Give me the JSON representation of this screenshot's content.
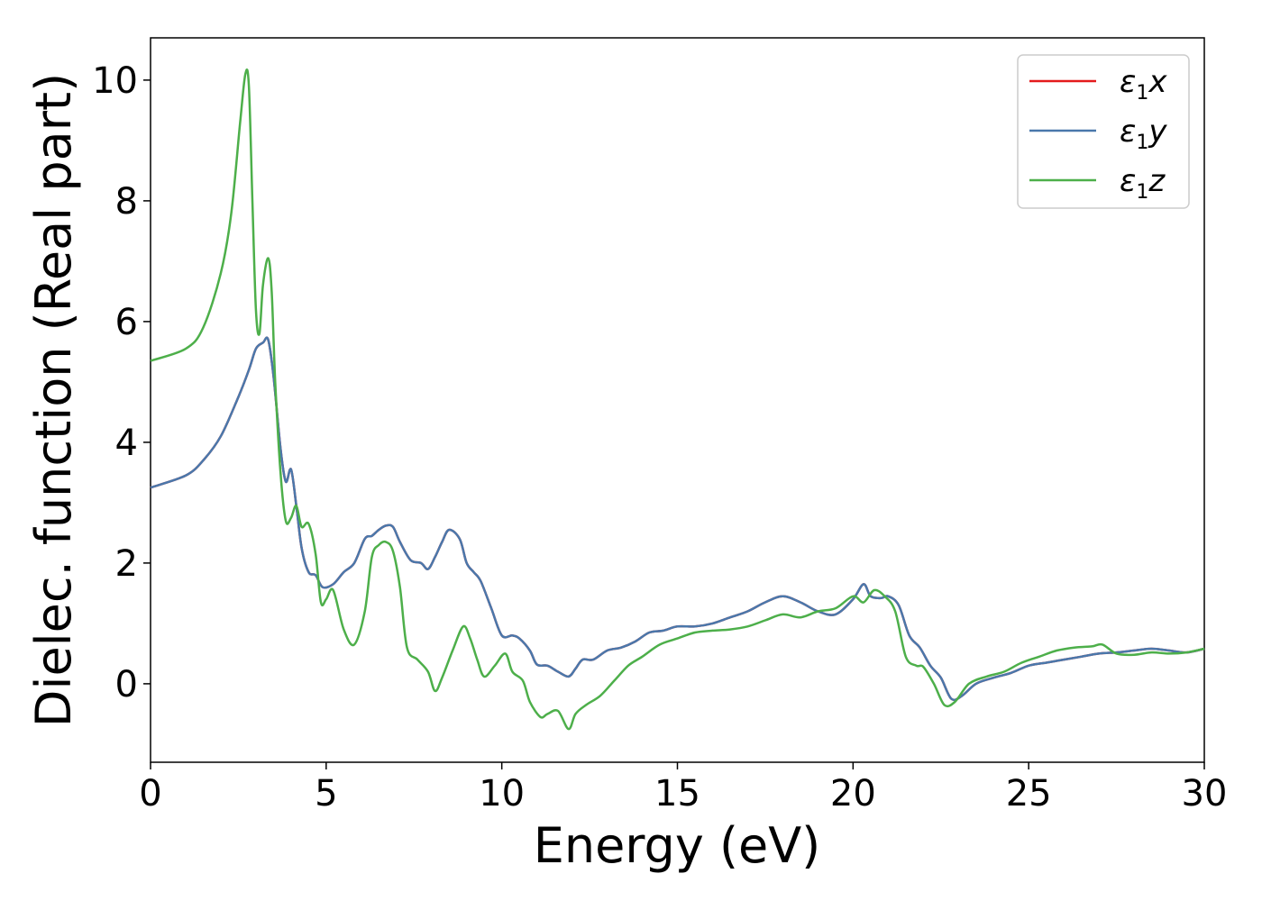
{
  "chart_data": {
    "type": "line",
    "xlabel": "Energy (eV)",
    "ylabel": "Dielec. function (Real part)",
    "xlim": [
      0,
      30
    ],
    "ylim": [
      -1.3,
      10.7
    ],
    "xticks": [
      0,
      5,
      10,
      15,
      20,
      25,
      30
    ],
    "yticks": [
      0,
      2,
      4,
      6,
      8,
      10
    ],
    "grid": false,
    "legend_position": "top-right",
    "series": [
      {
        "name": "ε1x",
        "legend": {
          "base": "ε",
          "sub": "1",
          "var": "x"
        },
        "color": "#e41a1c",
        "x": [
          0,
          1,
          1.5,
          2,
          2.5,
          2.8,
          3.0,
          3.2,
          3.35,
          3.5,
          3.7,
          3.85,
          4.0,
          4.15,
          4.3,
          4.5,
          4.7,
          4.9,
          5.2,
          5.5,
          5.8,
          6.1,
          6.3,
          6.5,
          6.7,
          6.9,
          7.1,
          7.4,
          7.7,
          7.9,
          8.1,
          8.3,
          8.5,
          8.8,
          9.0,
          9.2,
          9.4,
          9.7,
          10.0,
          10.3,
          10.5,
          10.8,
          11.0,
          11.3,
          11.6,
          11.9,
          12.1,
          12.3,
          12.6,
          13.0,
          13.4,
          13.8,
          14.2,
          14.6,
          15.0,
          15.5,
          16.0,
          16.5,
          17.0,
          17.5,
          18.0,
          18.5,
          19.0,
          19.5,
          20.0,
          20.3,
          20.5,
          20.8,
          21.0,
          21.3,
          21.6,
          21.9,
          22.2,
          22.5,
          22.8,
          23.1,
          23.5,
          24.0,
          24.5,
          25.0,
          25.5,
          26.0,
          26.5,
          27.0,
          27.5,
          28.0,
          28.5,
          29.0,
          29.5,
          30.0
        ],
        "values": [
          3.25,
          3.45,
          3.7,
          4.1,
          4.75,
          5.2,
          5.55,
          5.65,
          5.7,
          5.1,
          3.9,
          3.35,
          3.55,
          2.95,
          2.25,
          1.85,
          1.8,
          1.6,
          1.65,
          1.85,
          2.0,
          2.4,
          2.45,
          2.55,
          2.62,
          2.6,
          2.35,
          2.05,
          2.0,
          1.9,
          2.1,
          2.35,
          2.55,
          2.4,
          2.0,
          1.85,
          1.7,
          1.25,
          0.8,
          0.8,
          0.75,
          0.55,
          0.32,
          0.3,
          0.2,
          0.12,
          0.25,
          0.4,
          0.4,
          0.55,
          0.6,
          0.7,
          0.85,
          0.88,
          0.95,
          0.95,
          1.0,
          1.1,
          1.2,
          1.35,
          1.45,
          1.35,
          1.2,
          1.15,
          1.4,
          1.65,
          1.45,
          1.42,
          1.45,
          1.3,
          0.8,
          0.6,
          0.3,
          0.1,
          -0.25,
          -0.2,
          0.0,
          0.1,
          0.18,
          0.3,
          0.35,
          0.4,
          0.45,
          0.5,
          0.52,
          0.55,
          0.58,
          0.55,
          0.52,
          0.58
        ]
      },
      {
        "name": "ε1y",
        "legend": {
          "base": "ε",
          "sub": "1",
          "var": "y"
        },
        "color": "#4a78ab",
        "x": [
          0,
          1,
          1.5,
          2,
          2.5,
          2.8,
          3.0,
          3.2,
          3.35,
          3.5,
          3.7,
          3.85,
          4.0,
          4.15,
          4.3,
          4.5,
          4.7,
          4.9,
          5.2,
          5.5,
          5.8,
          6.1,
          6.3,
          6.5,
          6.7,
          6.9,
          7.1,
          7.4,
          7.7,
          7.9,
          8.1,
          8.3,
          8.5,
          8.8,
          9.0,
          9.2,
          9.4,
          9.7,
          10.0,
          10.3,
          10.5,
          10.8,
          11.0,
          11.3,
          11.6,
          11.9,
          12.1,
          12.3,
          12.6,
          13.0,
          13.4,
          13.8,
          14.2,
          14.6,
          15.0,
          15.5,
          16.0,
          16.5,
          17.0,
          17.5,
          18.0,
          18.5,
          19.0,
          19.5,
          20.0,
          20.3,
          20.5,
          20.8,
          21.0,
          21.3,
          21.6,
          21.9,
          22.2,
          22.5,
          22.8,
          23.1,
          23.5,
          24.0,
          24.5,
          25.0,
          25.5,
          26.0,
          26.5,
          27.0,
          27.5,
          28.0,
          28.5,
          29.0,
          29.5,
          30.0
        ],
        "values": [
          3.25,
          3.45,
          3.7,
          4.1,
          4.75,
          5.2,
          5.55,
          5.65,
          5.7,
          5.1,
          3.9,
          3.35,
          3.55,
          2.95,
          2.25,
          1.85,
          1.8,
          1.6,
          1.65,
          1.85,
          2.0,
          2.4,
          2.45,
          2.55,
          2.62,
          2.6,
          2.35,
          2.05,
          2.0,
          1.9,
          2.1,
          2.35,
          2.55,
          2.4,
          2.0,
          1.85,
          1.7,
          1.25,
          0.8,
          0.8,
          0.75,
          0.55,
          0.32,
          0.3,
          0.2,
          0.12,
          0.25,
          0.4,
          0.4,
          0.55,
          0.6,
          0.7,
          0.85,
          0.88,
          0.95,
          0.95,
          1.0,
          1.1,
          1.2,
          1.35,
          1.45,
          1.35,
          1.2,
          1.15,
          1.4,
          1.65,
          1.45,
          1.42,
          1.45,
          1.3,
          0.8,
          0.6,
          0.3,
          0.1,
          -0.25,
          -0.2,
          0.0,
          0.1,
          0.18,
          0.3,
          0.35,
          0.4,
          0.45,
          0.5,
          0.52,
          0.55,
          0.58,
          0.55,
          0.52,
          0.58
        ]
      },
      {
        "name": "ε1z",
        "legend": {
          "base": "ε",
          "sub": "1",
          "var": "z"
        },
        "color": "#4daf4a",
        "x": [
          0,
          1,
          1.5,
          2,
          2.3,
          2.55,
          2.7,
          2.8,
          2.9,
          3.0,
          3.1,
          3.2,
          3.35,
          3.45,
          3.55,
          3.7,
          3.85,
          4.0,
          4.15,
          4.3,
          4.5,
          4.7,
          4.85,
          5.0,
          5.2,
          5.5,
          5.8,
          6.1,
          6.3,
          6.5,
          6.7,
          6.9,
          7.1,
          7.3,
          7.6,
          7.9,
          8.1,
          8.3,
          8.6,
          8.9,
          9.1,
          9.3,
          9.5,
          9.8,
          10.1,
          10.3,
          10.6,
          10.8,
          11.1,
          11.3,
          11.6,
          11.9,
          12.1,
          12.4,
          12.8,
          13.2,
          13.6,
          14.0,
          14.5,
          15.0,
          15.5,
          16.0,
          16.5,
          17.0,
          17.5,
          18.0,
          18.5,
          19.0,
          19.5,
          20.0,
          20.3,
          20.6,
          20.9,
          21.2,
          21.5,
          21.8,
          22.0,
          22.3,
          22.6,
          22.9,
          23.3,
          23.8,
          24.3,
          24.8,
          25.3,
          25.8,
          26.3,
          26.8,
          27.1,
          27.5,
          28.0,
          28.5,
          29.0,
          29.5,
          30.0
        ],
        "values": [
          5.35,
          5.55,
          5.9,
          6.8,
          7.8,
          9.3,
          10.1,
          9.9,
          8.0,
          6.2,
          5.8,
          6.6,
          7.05,
          6.5,
          5.0,
          3.5,
          2.7,
          2.75,
          2.95,
          2.6,
          2.65,
          2.15,
          1.35,
          1.4,
          1.55,
          0.9,
          0.65,
          1.2,
          2.1,
          2.3,
          2.35,
          2.2,
          1.6,
          0.6,
          0.4,
          0.2,
          -0.12,
          0.1,
          0.55,
          0.95,
          0.75,
          0.4,
          0.12,
          0.3,
          0.5,
          0.2,
          0.05,
          -0.3,
          -0.55,
          -0.5,
          -0.45,
          -0.75,
          -0.5,
          -0.35,
          -0.2,
          0.05,
          0.3,
          0.45,
          0.65,
          0.75,
          0.85,
          0.88,
          0.9,
          0.95,
          1.05,
          1.15,
          1.1,
          1.2,
          1.25,
          1.45,
          1.35,
          1.55,
          1.45,
          1.2,
          0.45,
          0.3,
          0.28,
          0.0,
          -0.35,
          -0.3,
          0.0,
          0.12,
          0.2,
          0.35,
          0.45,
          0.55,
          0.6,
          0.62,
          0.65,
          0.5,
          0.48,
          0.52,
          0.5,
          0.52,
          0.58
        ]
      }
    ]
  }
}
